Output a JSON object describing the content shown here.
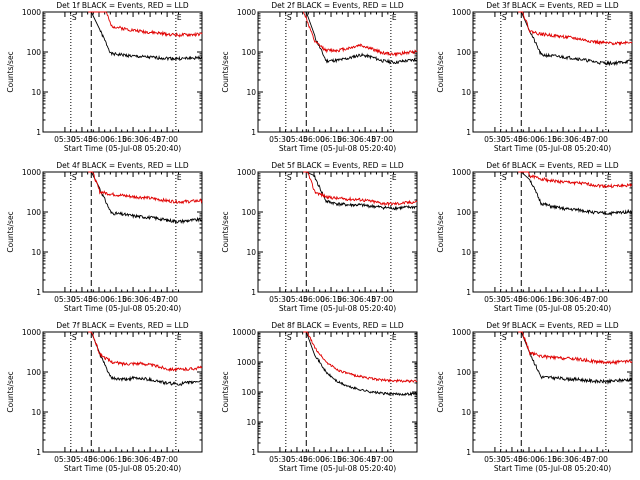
{
  "window": {
    "title": ""
  },
  "colors": {
    "events": "#000000",
    "lld": "#e00000",
    "axis": "#000000",
    "background": "#ffffff"
  },
  "shared": {
    "ylabel": "Counts/sec",
    "xlabel": "Start Time (05-Jul-08 05:20:40)",
    "x_ticks": [
      "05:30",
      "05:45",
      "06:00",
      "06:15",
      "06:30",
      "06:45",
      "07:00"
    ],
    "marker_S": "S",
    "marker_E": "E"
  },
  "chart_data": [
    {
      "type": "line",
      "panel": 1,
      "title": "Det 1f BLACK = Events, RED = LLD",
      "y_scale": "log",
      "ylim": [
        1,
        1000
      ],
      "y_ticks": [
        "1",
        "10",
        "100",
        "1000"
      ],
      "x_minutes": [
        0,
        10,
        20,
        30,
        40,
        50,
        60,
        70,
        80,
        90,
        100
      ],
      "series": [
        {
          "name": "Events",
          "color": "#000000",
          "values": [
            null,
            null,
            90,
            85,
            78,
            75,
            72,
            70,
            68,
            70,
            72
          ]
        },
        {
          "name": "LLD",
          "color": "#e00000",
          "values": [
            null,
            null,
            450,
            390,
            350,
            320,
            300,
            280,
            265,
            270,
            280
          ]
        }
      ],
      "dashed_line_minute": 2.5,
      "dotted_lines_minute": [
        -15.5,
        77
      ]
    },
    {
      "type": "line",
      "panel": 2,
      "title": "Det 2f BLACK = Events, RED = LLD",
      "y_scale": "log",
      "ylim": [
        1,
        1000
      ],
      "y_ticks": [
        "1",
        "10",
        "100",
        "1000"
      ],
      "x_minutes": [
        0,
        10,
        20,
        30,
        40,
        50,
        60,
        70,
        80,
        90,
        100
      ],
      "series": [
        {
          "name": "Events",
          "color": "#000000",
          "values": [
            null,
            null,
            60,
            62,
            70,
            85,
            75,
            60,
            55,
            60,
            65
          ]
        },
        {
          "name": "LLD",
          "color": "#e00000",
          "values": [
            null,
            180,
            110,
            110,
            125,
            150,
            120,
            95,
            88,
            95,
            105
          ]
        }
      ],
      "dashed_line_minute": 2.5,
      "dotted_lines_minute": [
        -15.5,
        77
      ]
    },
    {
      "type": "line",
      "panel": 3,
      "title": "Det 3f BLACK = Events, RED = LLD",
      "y_scale": "log",
      "ylim": [
        1,
        1000
      ],
      "y_ticks": [
        "1",
        "10",
        "100",
        "1000"
      ],
      "x_minutes": [
        0,
        10,
        20,
        30,
        40,
        50,
        60,
        70,
        80,
        90,
        100
      ],
      "series": [
        {
          "name": "Events",
          "color": "#000000",
          "values": [
            null,
            null,
            85,
            80,
            75,
            70,
            62,
            55,
            52,
            55,
            60
          ]
        },
        {
          "name": "LLD",
          "color": "#e00000",
          "values": [
            null,
            330,
            280,
            260,
            240,
            220,
            195,
            175,
            165,
            170,
            180
          ]
        }
      ],
      "dashed_line_minute": 2.5,
      "dotted_lines_minute": [
        -15.5,
        77
      ]
    },
    {
      "type": "line",
      "panel": 4,
      "title": "Det 4f BLACK = Events, RED = LLD",
      "y_scale": "log",
      "ylim": [
        1,
        1000
      ],
      "y_ticks": [
        "1",
        "10",
        "100",
        "1000"
      ],
      "x_minutes": [
        0,
        10,
        20,
        30,
        40,
        50,
        60,
        70,
        80,
        90,
        100
      ],
      "series": [
        {
          "name": "Events",
          "color": "#000000",
          "values": [
            null,
            null,
            95,
            88,
            80,
            75,
            70,
            62,
            58,
            62,
            65
          ]
        },
        {
          "name": "LLD",
          "color": "#e00000",
          "values": [
            null,
            320,
            280,
            260,
            240,
            230,
            210,
            190,
            180,
            185,
            195
          ]
        }
      ],
      "dashed_line_minute": 2.5,
      "dotted_lines_minute": [
        -15.5,
        77
      ]
    },
    {
      "type": "line",
      "panel": 5,
      "title": "Det 5f BLACK = Events, RED = LLD",
      "y_scale": "log",
      "ylim": [
        1,
        1000
      ],
      "y_ticks": [
        "1",
        "10",
        "100",
        "1000"
      ],
      "x_minutes": [
        0,
        10,
        20,
        30,
        40,
        50,
        60,
        70,
        80,
        90,
        100
      ],
      "series": [
        {
          "name": "Events",
          "color": "#000000",
          "values": [
            null,
            null,
            185,
            160,
            150,
            150,
            140,
            130,
            125,
            130,
            135
          ]
        },
        {
          "name": "LLD",
          "color": "#e00000",
          "values": [
            null,
            320,
            240,
            220,
            210,
            205,
            185,
            165,
            160,
            170,
            180
          ]
        }
      ],
      "dashed_line_minute": 2.5,
      "dotted_lines_minute": [
        -15.5,
        77
      ]
    },
    {
      "type": "line",
      "panel": 6,
      "title": "Det 6f BLACK = Events, RED = LLD",
      "y_scale": "log",
      "ylim": [
        1,
        1000
      ],
      "y_ticks": [
        "1",
        "10",
        "100",
        "1000"
      ],
      "x_minutes": [
        0,
        10,
        20,
        30,
        40,
        50,
        60,
        70,
        80,
        90,
        100
      ],
      "series": [
        {
          "name": "Events",
          "color": "#000000",
          "values": [
            null,
            null,
            165,
            135,
            120,
            115,
            105,
            95,
            92,
            98,
            105
          ]
        },
        {
          "name": "LLD",
          "color": "#e00000",
          "values": [
            null,
            800,
            680,
            600,
            560,
            540,
            500,
            460,
            440,
            450,
            470
          ]
        }
      ],
      "dashed_line_minute": 2.5,
      "dotted_lines_minute": [
        -15.5,
        77
      ]
    },
    {
      "type": "line",
      "panel": 7,
      "title": "Det 7f BLACK = Events, RED = LLD",
      "y_scale": "log",
      "ylim": [
        1,
        1000
      ],
      "y_ticks": [
        "1",
        "10",
        "100",
        "1000"
      ],
      "x_minutes": [
        0,
        10,
        20,
        30,
        40,
        50,
        60,
        70,
        80,
        90,
        100
      ],
      "series": [
        {
          "name": "Events",
          "color": "#000000",
          "values": [
            null,
            null,
            70,
            65,
            70,
            68,
            60,
            52,
            50,
            55,
            60
          ]
        },
        {
          "name": "LLD",
          "color": "#e00000",
          "values": [
            null,
            280,
            180,
            160,
            165,
            160,
            140,
            120,
            115,
            120,
            130
          ]
        }
      ],
      "dashed_line_minute": 2.5,
      "dotted_lines_minute": [
        -15.5,
        77
      ]
    },
    {
      "type": "line",
      "panel": 8,
      "title": "Det 8f BLACK = Events, RED = LLD",
      "y_scale": "log",
      "ylim": [
        1,
        10000
      ],
      "y_ticks": [
        "1",
        "10",
        "100",
        "1000",
        "10000"
      ],
      "x_minutes": [
        0,
        10,
        20,
        30,
        40,
        50,
        60,
        70,
        80,
        90,
        100
      ],
      "series": [
        {
          "name": "Events",
          "color": "#000000",
          "values": [
            null,
            null,
            450,
            220,
            150,
            120,
            100,
            90,
            85,
            85,
            90
          ]
        },
        {
          "name": "LLD",
          "color": "#e00000",
          "values": [
            null,
            3000,
            1000,
            550,
            400,
            330,
            280,
            250,
            240,
            230,
            230
          ]
        }
      ],
      "dashed_line_minute": 2.5,
      "dotted_lines_minute": [
        -15.5,
        77
      ]
    },
    {
      "type": "line",
      "panel": 9,
      "title": "Det 9f BLACK = Events, RED = LLD",
      "y_scale": "log",
      "ylim": [
        1,
        1000
      ],
      "y_ticks": [
        "1",
        "10",
        "100",
        "1000"
      ],
      "x_minutes": [
        0,
        10,
        20,
        30,
        40,
        50,
        60,
        70,
        80,
        90,
        100
      ],
      "series": [
        {
          "name": "Events",
          "color": "#000000",
          "values": [
            null,
            null,
            75,
            72,
            68,
            66,
            62,
            58,
            58,
            62,
            65
          ]
        },
        {
          "name": "LLD",
          "color": "#e00000",
          "values": [
            null,
            300,
            250,
            230,
            220,
            215,
            195,
            180,
            175,
            178,
            185
          ]
        }
      ],
      "dashed_line_minute": 2.5,
      "dotted_lines_minute": [
        -15.5,
        77
      ]
    }
  ]
}
